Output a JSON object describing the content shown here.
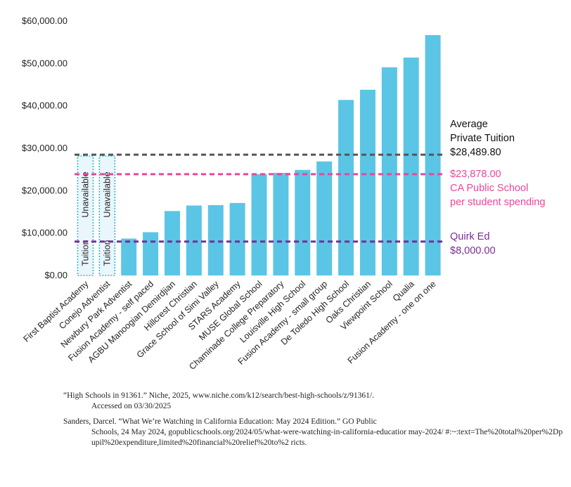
{
  "chart_data": {
    "type": "bar",
    "categories": [
      "First Baptist Academy",
      "Conejo Adventist",
      "Newbury Park Adventist",
      "Fusion Academy - self paced",
      "AGBU Manoogian Demirdjian",
      "Hillcrest Christian",
      "Grace School of Simi Valley",
      "STARS Academy",
      "MUSE Global School",
      "Chaminade College Preparatory",
      "Louisville High School",
      "Fusion Academy - small group",
      "De Toledo High School",
      "Oaks Christian",
      "Viewpoint School",
      "Qualia",
      "Fusion Academy - one on one"
    ],
    "values": [
      null,
      null,
      8700,
      10200,
      15200,
      16500,
      16600,
      17100,
      23900,
      24200,
      24900,
      26900,
      41400,
      43800,
      49100,
      51400,
      56700
    ],
    "unavailable_label": {
      "line1": "Tuition",
      "line2": "Unavailable"
    },
    "ylim": [
      0,
      60000
    ],
    "yticks": [
      "$0.00",
      "$10,000.00",
      "$20,000.00",
      "$30,000.00",
      "$40,000.00",
      "$50,000.00",
      "$60,000.00"
    ],
    "ytick_values": [
      0,
      10000,
      20000,
      30000,
      40000,
      50000,
      60000
    ],
    "bar_color": "#5bc5e6",
    "reference_lines": [
      {
        "name": "average-private-tuition",
        "value": 28489.8,
        "color": "#555555",
        "labels": [
          "Average",
          "Private Tuition",
          "$28,489.80"
        ],
        "label_color": "#111111"
      },
      {
        "name": "ca-public-school-spending",
        "value": 23878,
        "color": "#e8479a",
        "labels": [
          "$23,878.00",
          "CA Public School",
          "per student spending"
        ],
        "label_color": "#e8479a"
      },
      {
        "name": "quirk-ed",
        "value": 8000,
        "color": "#7b2c96",
        "labels": [
          "Quirk Ed",
          "$8,000.00"
        ],
        "label_color": "#7b2c96"
      }
    ],
    "title": "",
    "xlabel": "",
    "ylabel": ""
  },
  "citations": [
    {
      "line1": "“High Schools in 91361.” Niche, 2025, www.niche.com/k12/search/best-high-schools/z/91361/.",
      "line2": "Accessed on 03/30/2025"
    },
    {
      "line1": "Sanders, Darcel. “What We’re Watching in California Education: May 2024 Edition.” GO Public",
      "line2": "Schools, 24 May 2024, gopublicschools.org/2024/05/what-were-watching-in-california-educatior may-2024/ #:~:text=The%20total%20per%2Dpupil%20expenditure,limited%20financial%20relief%20to%2 ricts."
    }
  ]
}
